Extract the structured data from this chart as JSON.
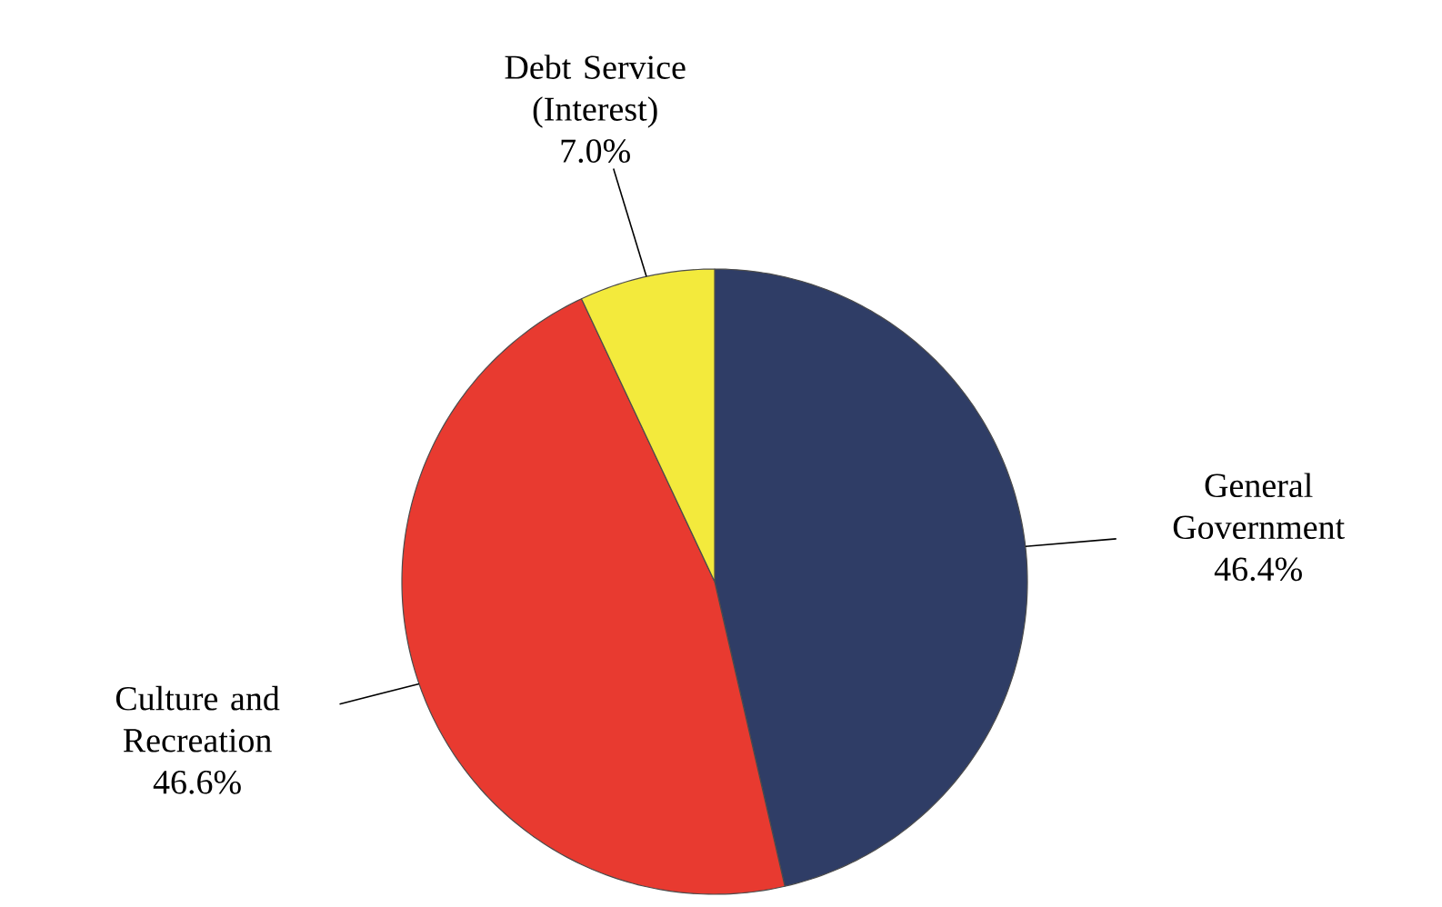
{
  "chart_data": {
    "type": "pie",
    "categories": [
      "General Government",
      "Culture and Recreation",
      "Debt Service (Interest)"
    ],
    "values": [
      46.4,
      46.6,
      7.0
    ],
    "value_labels": [
      "46.4%",
      "46.6%",
      "7.0%"
    ],
    "colors": [
      "#2f3d66",
      "#e83a30",
      "#f3ea3c"
    ]
  }
}
